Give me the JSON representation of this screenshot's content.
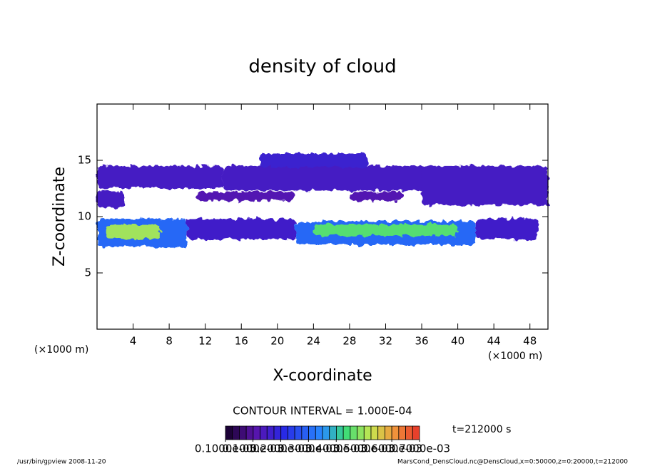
{
  "chart_data": {
    "type": "contour",
    "title": "density of cloud",
    "x_label": "X-coordinate",
    "y_label": "Z-coordinate",
    "x_unit": "(×1000 m)",
    "y_unit": "(×1000 m)",
    "xlim": [
      0,
      50
    ],
    "xticks": [
      4,
      8,
      12,
      16,
      20,
      24,
      28,
      32,
      36,
      40,
      44,
      48
    ],
    "ylim": [
      0,
      20
    ],
    "yticks": [
      5,
      10,
      15
    ],
    "patches": [
      {
        "x": [
          0,
          14
        ],
        "z": [
          12.5,
          14.5
        ],
        "value": 0.00015
      },
      {
        "x": [
          0,
          3
        ],
        "z": [
          10.8,
          12.3
        ],
        "value": 0.00015
      },
      {
        "x": [
          14,
          38
        ],
        "z": [
          12.3,
          14.5
        ],
        "value": 0.00015
      },
      {
        "x": [
          18,
          30
        ],
        "z": [
          14.4,
          15.6
        ],
        "value": 0.00017
      },
      {
        "x": [
          36,
          50
        ],
        "z": [
          11,
          14.5
        ],
        "value": 0.00015
      },
      {
        "x": [
          11,
          22
        ],
        "z": [
          11.4,
          12.2
        ],
        "value": 0.00012
      },
      {
        "x": [
          28,
          34
        ],
        "z": [
          11.4,
          12.2
        ],
        "value": 0.00012
      },
      {
        "x": [
          0,
          10
        ],
        "z": [
          7.3,
          9.8
        ],
        "value": 0.0003
      },
      {
        "x": [
          10,
          22
        ],
        "z": [
          8,
          9.8
        ],
        "value": 0.00016
      },
      {
        "x": [
          22,
          42
        ],
        "z": [
          7.5,
          9.6
        ],
        "value": 0.0003
      },
      {
        "x": [
          42,
          49
        ],
        "z": [
          8,
          9.8
        ],
        "value": 0.00016
      },
      {
        "x": [
          1,
          7
        ],
        "z": [
          8,
          9.3
        ],
        "value": 0.0005
      },
      {
        "x": [
          24,
          40
        ],
        "z": [
          8.3,
          9.3
        ],
        "value": 0.00045
      }
    ],
    "contour_interval": "CONTOUR INTERVAL = 1.000E-04",
    "time": "t=212000 s",
    "colorbar_labels": [
      {
        "value": 1e-06,
        "label": "0.1000e-05"
      },
      {
        "value": 0.0001,
        "label": "0.1000e-03"
      },
      {
        "value": 0.0002,
        "label": "0.2000e-03"
      },
      {
        "value": 0.0003,
        "label": "0.3000e-03"
      },
      {
        "value": 0.0004,
        "label": "0.4000e-03"
      },
      {
        "value": 0.0005,
        "label": "0.5000e-03"
      },
      {
        "value": 0.0006,
        "label": "0.6000e-03"
      },
      {
        "value": 0.0007,
        "label": "0.7000e-03"
      }
    ],
    "footer_left": "/usr/bin/gpview  2008-11-20",
    "footer_right": "MarsCond_DensCloud.nc@DensCloud,x=0:50000,z=0:20000,t=212000"
  }
}
